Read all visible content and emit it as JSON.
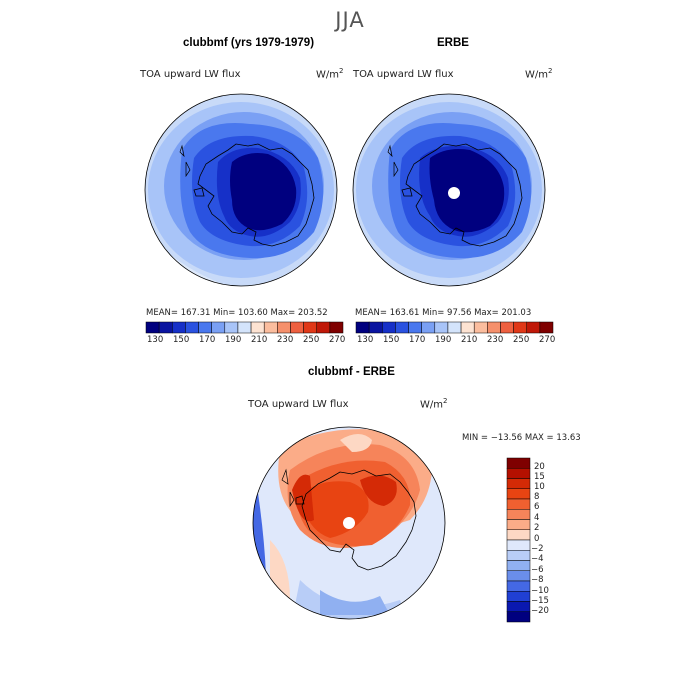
{
  "season": "JJA",
  "panels": [
    {
      "title": "clubbmf (yrs 1979-1979)",
      "variable": "TOA upward LW flux",
      "units_base": "W/m",
      "units_exp": "2",
      "stats": "MEAN= 167.31    Min= 103.60    Max= 203.52"
    },
    {
      "title": "ERBE",
      "variable": "TOA upward LW flux",
      "units_base": "W/m",
      "units_exp": "2",
      "stats": "MEAN= 163.61    Min=  97.56    Max= 201.03"
    }
  ],
  "flux_colorbar": {
    "ticks": [
      "130",
      "150",
      "170",
      "190",
      "210",
      "230",
      "250",
      "270"
    ],
    "colors": [
      "#00007f",
      "#0a14a0",
      "#1630c8",
      "#2a52e0",
      "#4a78ee",
      "#7aa0f4",
      "#a8c4f8",
      "#d4e4fb",
      "#fde3d2",
      "#fbbd9e",
      "#f5906c",
      "#ee6040",
      "#e03818",
      "#c01808",
      "#7f0000"
    ]
  },
  "diff_panel": {
    "title": "clubbmf - ERBE",
    "variable": "TOA upward LW flux",
    "units_base": "W/m",
    "units_exp": "2",
    "stats": "MIN = −13.56  MAX =  13.63",
    "colorbar_ticks": [
      "20",
      "15",
      "10",
      "8",
      "6",
      "4",
      "2",
      "0",
      "−2",
      "−4",
      "−6",
      "−8",
      "−10",
      "−15",
      "−20"
    ],
    "colors": [
      "#7f0000",
      "#b41000",
      "#d42a06",
      "#e84412",
      "#f06030",
      "#f6845a",
      "#fbac88",
      "#fdd8c4",
      "#dfe8fb",
      "#b8cdf7",
      "#90b0f1",
      "#6a8eeb",
      "#4468e4",
      "#2040d4",
      "#0a18b0",
      "#00007f"
    ]
  }
}
